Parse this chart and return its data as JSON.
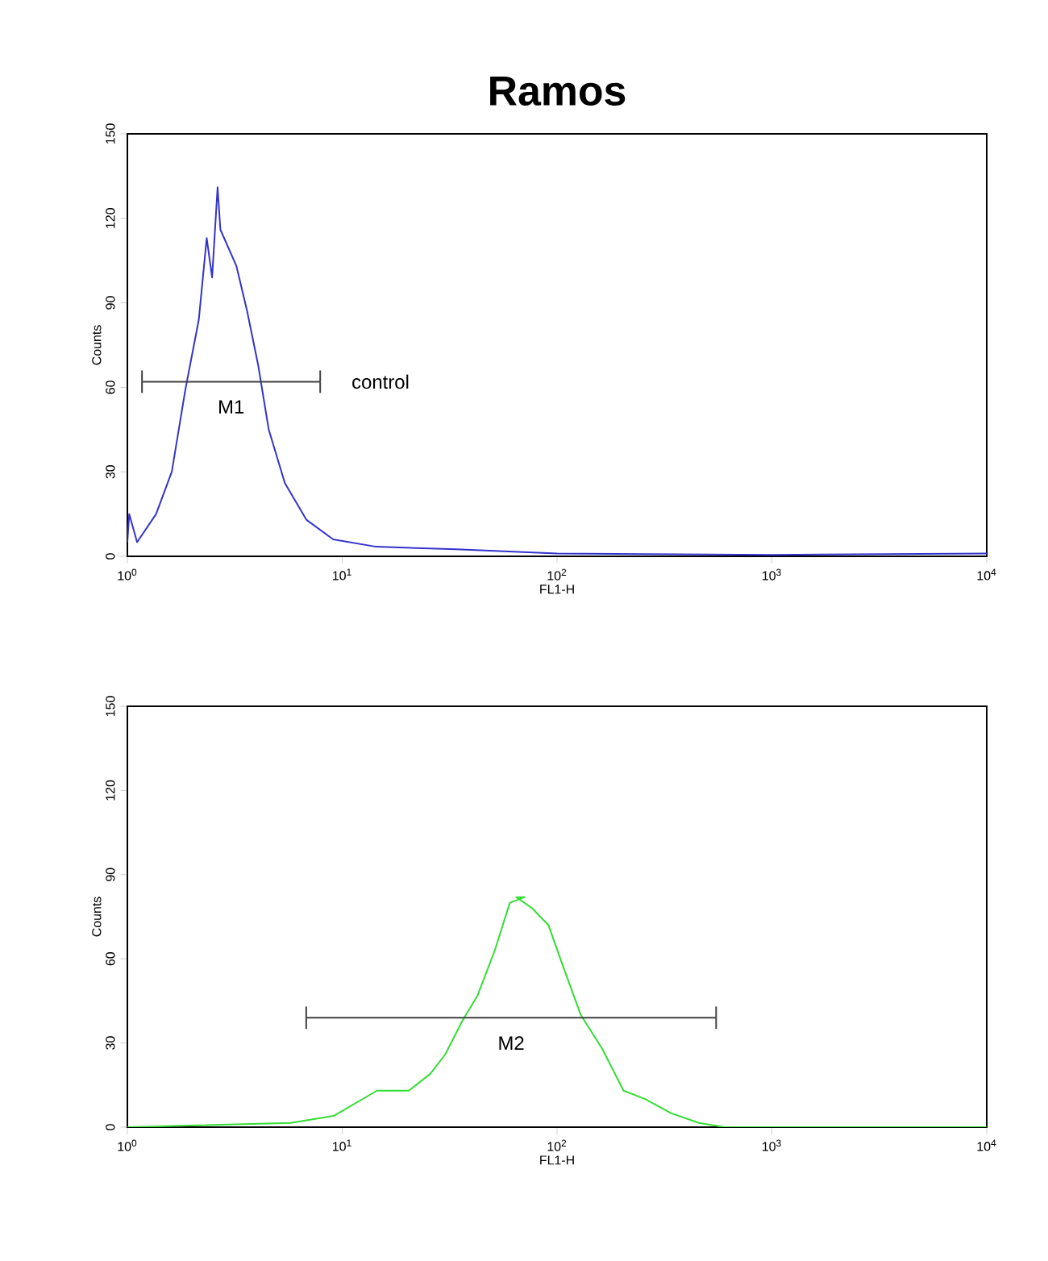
{
  "chart_data": [
    {
      "type": "line",
      "title": "Ramos",
      "xlabel": "FL1-H",
      "ylabel": "Counts",
      "log": "x",
      "xlim": [
        1,
        10000
      ],
      "ylim": [
        0,
        150
      ],
      "xticks": [
        {
          "value": 1,
          "label": "10$^{0}$"
        },
        {
          "value": 10,
          "label": "10$^{1}$"
        },
        {
          "value": 100,
          "label": "10$^{2}$"
        },
        {
          "value": 1000,
          "label": "10$^{3}$"
        },
        {
          "value": 10000,
          "label": "10$^{4}$"
        }
      ],
      "yticks": [
        0,
        30,
        60,
        90,
        120,
        150
      ],
      "series": [
        {
          "color": "#3333cc",
          "x": [
            1,
            1.02,
            1.11,
            1.36,
            1.61,
            1.86,
            2.15,
            2.34,
            2.48,
            2.63,
            2.71,
            3.22,
            3.61,
            4.06,
            4.55,
            5.41,
            6.81,
            9.08,
            14.4,
            33.9,
            100,
            1000,
            10000
          ],
          "values": [
            5,
            15,
            5,
            15,
            30,
            59,
            84,
            113,
            99,
            131,
            116,
            103,
            87,
            68,
            45,
            26,
            13,
            6,
            3.4,
            2.5,
            1,
            0.5,
            1
          ]
        },
        {
          "color": "#404040",
          "x": [
            1.17,
            7.9
          ],
          "values": [
            62,
            62
          ],
          "errors": [
            4,
            4
          ]
        }
      ],
      "annotations": [
        "control",
        "M1"
      ]
    },
    {
      "type": "line",
      "xlabel": "FL1-H",
      "ylabel": "Counts",
      "log": "x",
      "xlim": [
        1,
        10000
      ],
      "ylim": [
        0,
        150
      ],
      "xticks": [
        {
          "value": 1,
          "label": "10$^{0}$"
        },
        {
          "value": 10,
          "label": "10$^{1}$"
        },
        {
          "value": 100,
          "label": "10$^{2}$"
        },
        {
          "value": 1000,
          "label": "10$^{3}$"
        },
        {
          "value": 10000,
          "label": "10$^{4}$"
        }
      ],
      "yticks": [
        0,
        30,
        60,
        90,
        120,
        150
      ],
      "series": [
        {
          "color": "#33dd33",
          "x": [
            1,
            5.75,
            9.12,
            14.5,
            20.4,
            25.7,
            30.2,
            36.3,
            42.7,
            51.3,
            60.3,
            70.8,
            64.6,
            76.6,
            91.2,
            107,
            129,
            162,
            204,
            257,
            339,
            457,
            603,
            10000
          ],
          "values": [
            0,
            1.5,
            4,
            13,
            13,
            19,
            26,
            38,
            47,
            63,
            80,
            82,
            82,
            78,
            72,
            57,
            40,
            28,
            13,
            10,
            5,
            1.5,
            0,
            0
          ]
        },
        {
          "color": "#404040",
          "x": [
            6.8,
            550
          ],
          "values": [
            39,
            39
          ],
          "errors": [
            4,
            4
          ]
        }
      ],
      "annotations": [
        "M2"
      ]
    }
  ]
}
